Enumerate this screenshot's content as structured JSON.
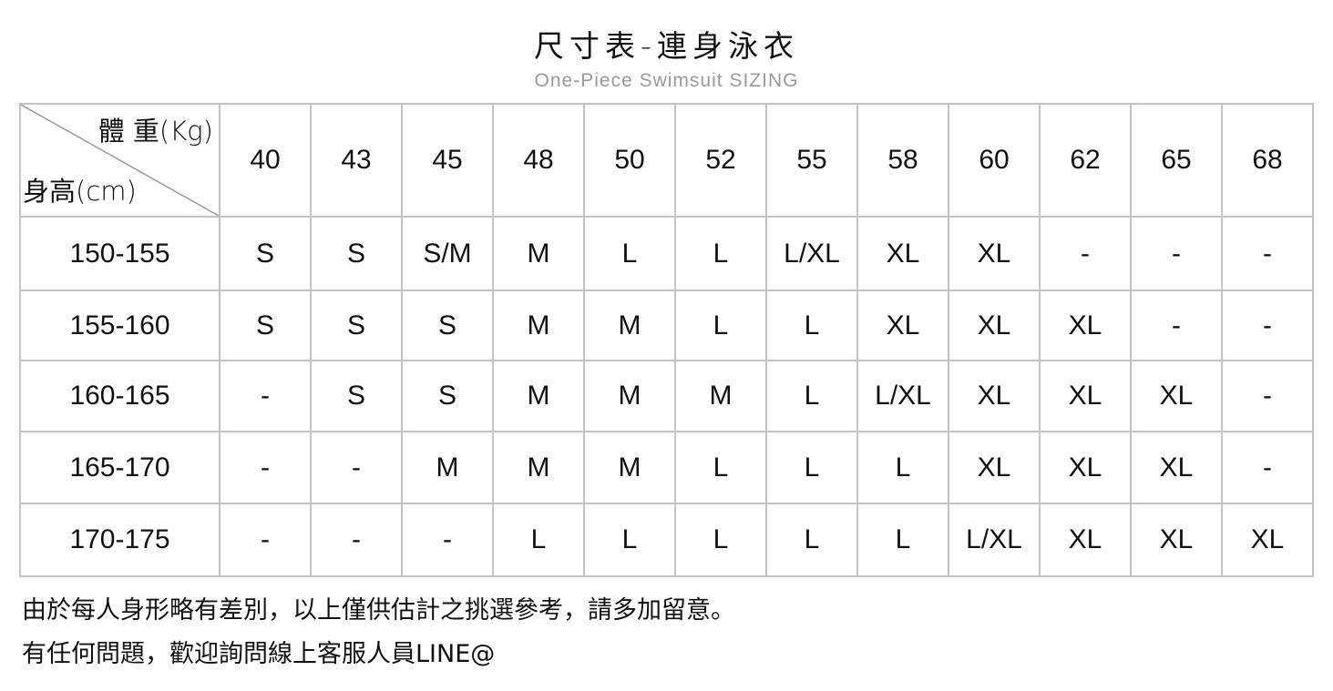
{
  "title": "尺寸表-連身泳衣",
  "subtitle": "One-Piece Swimsuit  SIZING",
  "table": {
    "corner_weight_label": "體 重(Kg)",
    "corner_height_label": "身高(cm)",
    "weights": [
      "40",
      "43",
      "45",
      "48",
      "50",
      "52",
      "55",
      "58",
      "60",
      "62",
      "65",
      "68"
    ],
    "rows": [
      {
        "height": "150-155",
        "sizes": [
          "S",
          "S",
          "S/M",
          "M",
          "L",
          "L",
          "L/XL",
          "XL",
          "XL",
          "-",
          "-",
          "-"
        ]
      },
      {
        "height": "155-160",
        "sizes": [
          "S",
          "S",
          "S",
          "M",
          "M",
          "L",
          "L",
          "XL",
          "XL",
          "XL",
          "-",
          "-"
        ]
      },
      {
        "height": "160-165",
        "sizes": [
          "-",
          "S",
          "S",
          "M",
          "M",
          "M",
          "L",
          "L/XL",
          "XL",
          "XL",
          "XL",
          "-"
        ]
      },
      {
        "height": "165-170",
        "sizes": [
          "-",
          "-",
          "M",
          "M",
          "M",
          "L",
          "L",
          "L",
          "XL",
          "XL",
          "XL",
          "-"
        ]
      },
      {
        "height": "170-175",
        "sizes": [
          "-",
          "-",
          "-",
          "L",
          "L",
          "L",
          "L",
          "L",
          "L/XL",
          "XL",
          "XL",
          "XL"
        ]
      }
    ]
  },
  "notes": [
    "由於每人身形略有差別，以上僅供估計之挑選參考，請多加留意。",
    "有任何問題，歡迎詢問線上客服人員LINE@"
  ]
}
